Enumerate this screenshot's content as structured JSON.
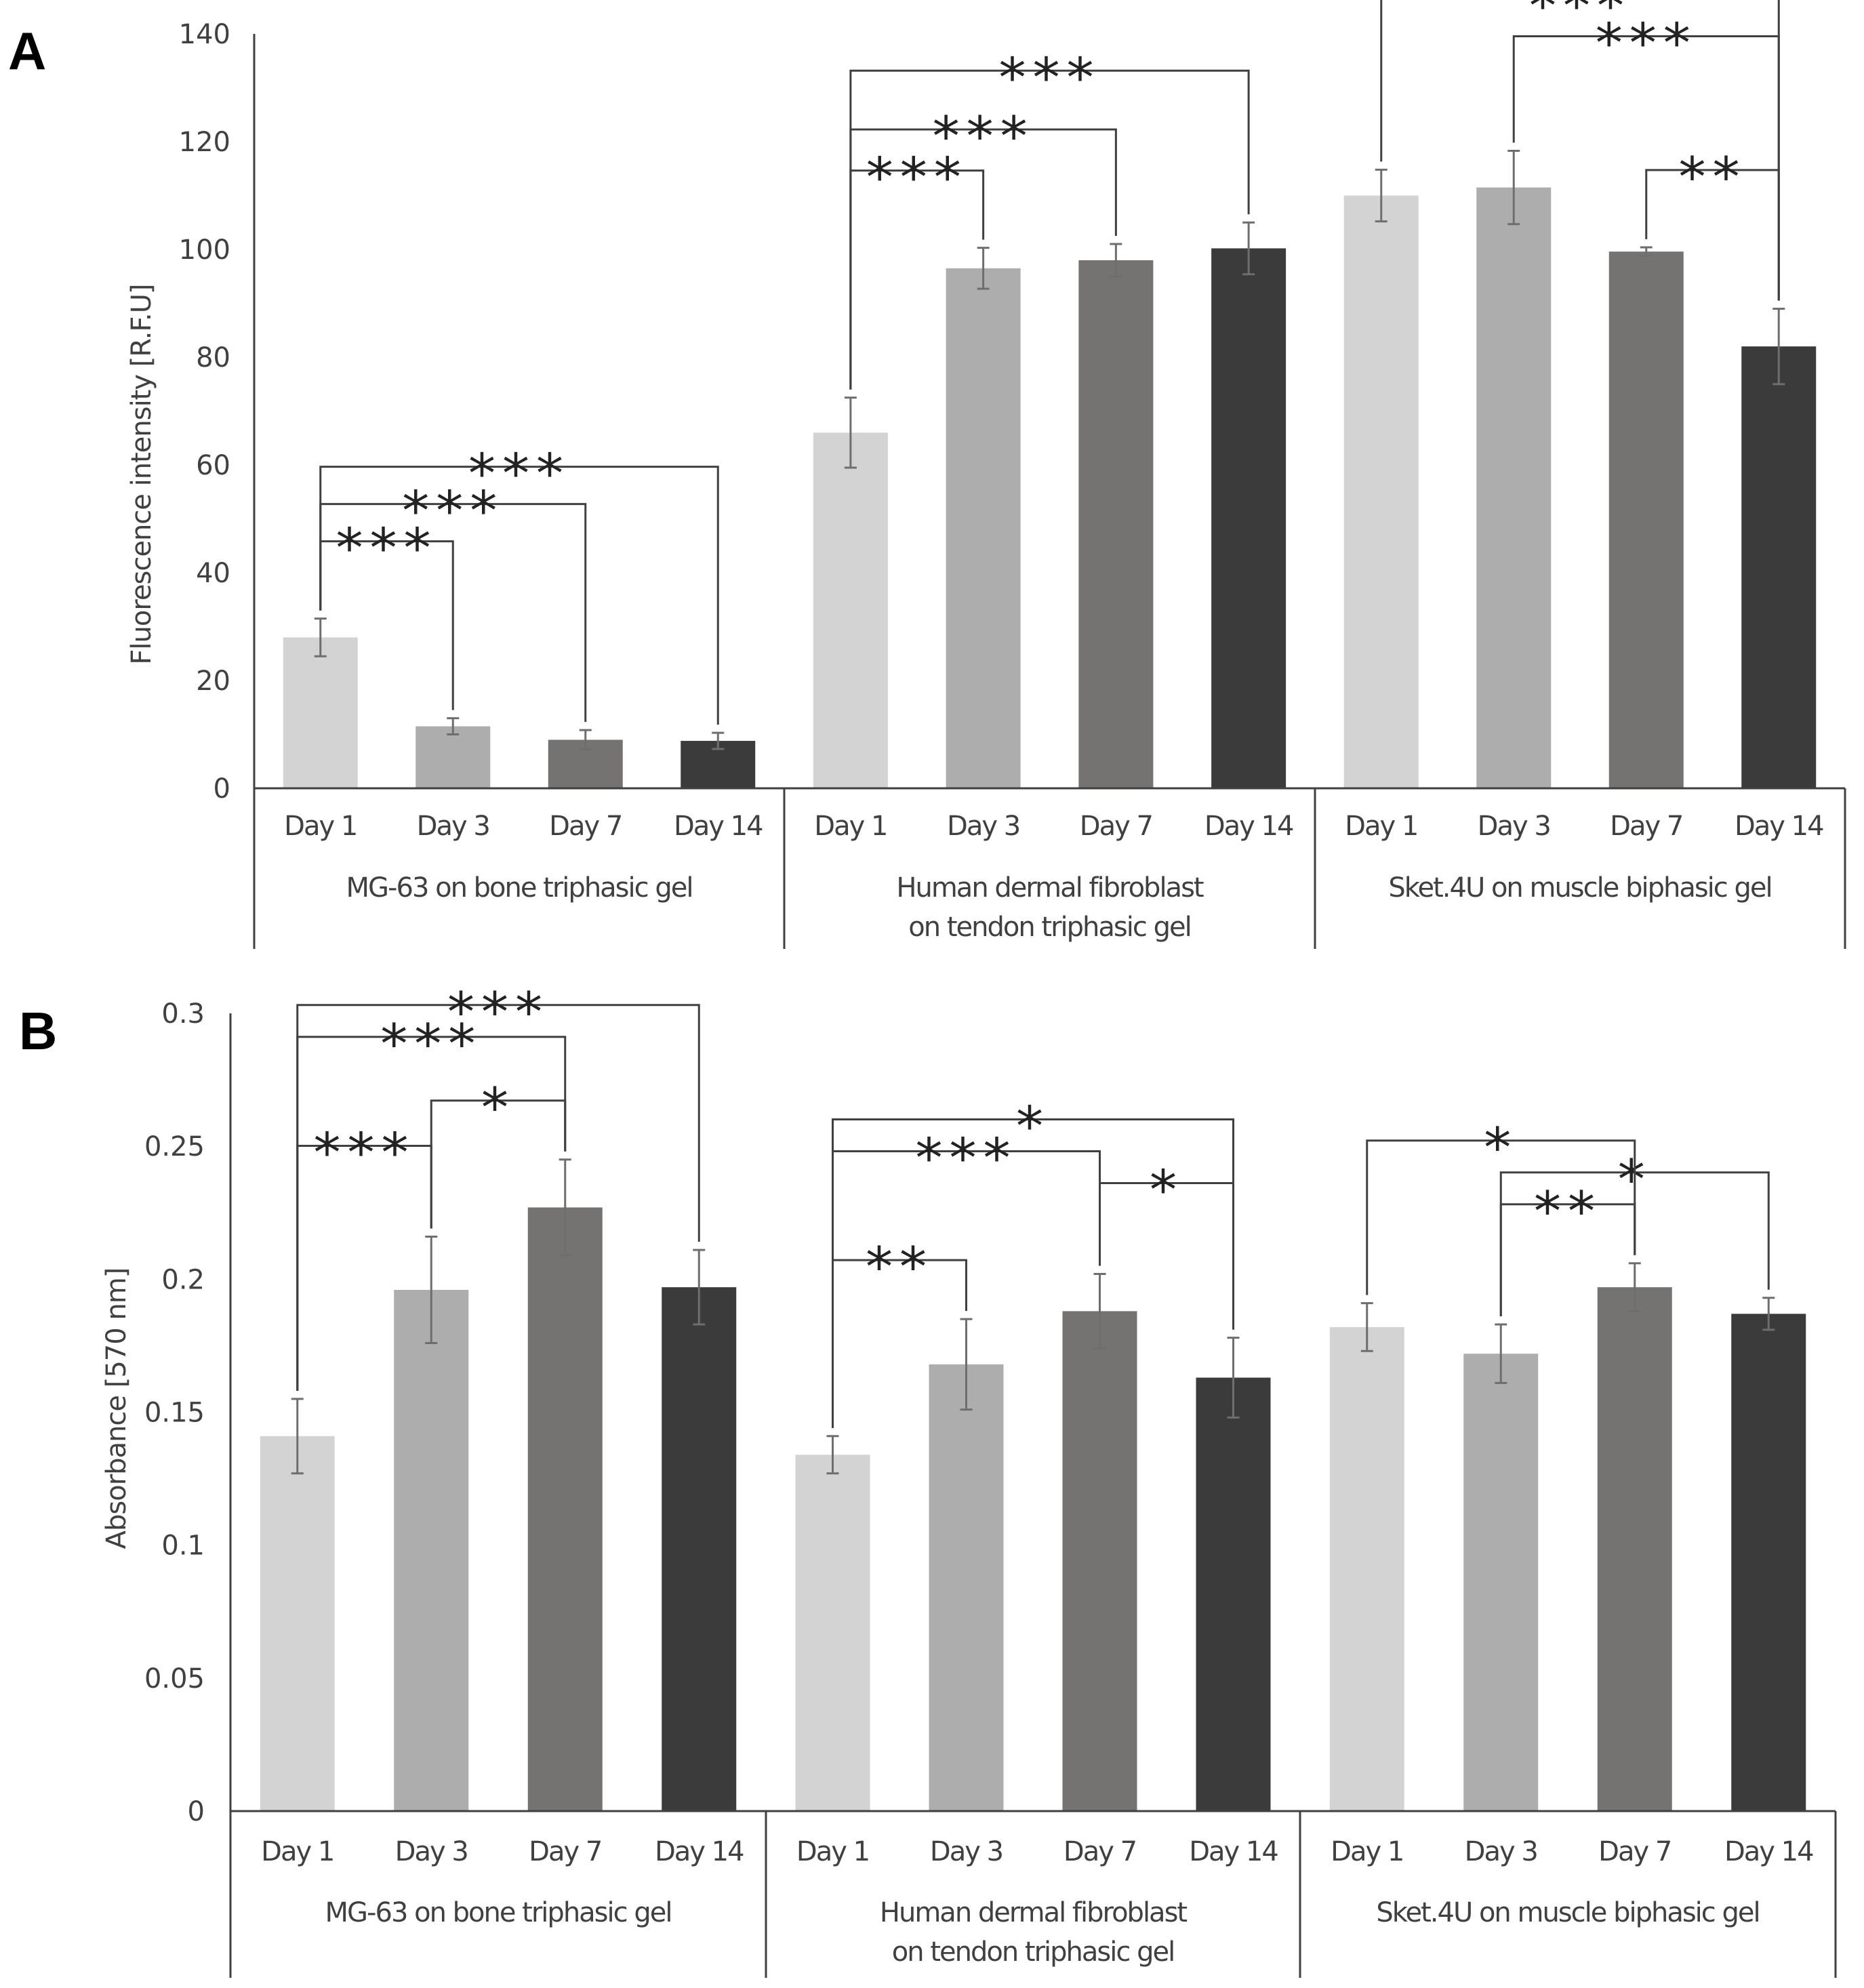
{
  "chart_data": [
    {
      "panel": "A",
      "type": "bar",
      "title": "",
      "ylabel": "Fluorescence intensity [R.F.U]",
      "ylim": [
        0,
        140
      ],
      "yticks": [
        0,
        20,
        40,
        60,
        80,
        100,
        120,
        140
      ],
      "categories": [
        "Day 1",
        "Day 3",
        "Day 7",
        "Day 14"
      ],
      "colors": [
        "#d3d3d3",
        "#adadad",
        "#757272",
        "#3b3b3b"
      ],
      "groups": [
        {
          "label_lines": [
            "MG-63 on bone triphasic gel"
          ],
          "values": [
            28,
            11.5,
            9,
            8.8
          ],
          "errors": [
            3.5,
            1.5,
            1.8,
            1.5
          ]
        },
        {
          "label_lines": [
            "Human dermal fibroblast",
            "on tendon triphasic gel"
          ],
          "values": [
            66,
            96.5,
            98,
            100.2
          ],
          "errors": [
            6.5,
            3.8,
            3,
            4.8
          ]
        },
        {
          "label_lines": [
            "Sket.4U on muscle biphasic gel"
          ],
          "values": [
            110,
            111.5,
            99.6,
            82
          ],
          "errors": [
            4.8,
            6.8,
            0.8,
            7
          ]
        }
      ],
      "significance": [
        {
          "group": 0,
          "from": 0,
          "to": 1,
          "level": 1,
          "label": "***"
        },
        {
          "group": 0,
          "from": 0,
          "to": 2,
          "level": 2,
          "label": "***"
        },
        {
          "group": 0,
          "from": 0,
          "to": 3,
          "level": 3,
          "label": "***"
        },
        {
          "group": 1,
          "from": 0,
          "to": 1,
          "level": 1,
          "label": "***"
        },
        {
          "group": 1,
          "from": 0,
          "to": 2,
          "level": 2,
          "label": "***"
        },
        {
          "group": 1,
          "from": 0,
          "to": 3,
          "level": 3,
          "label": "***"
        },
        {
          "group": 2,
          "from": 2,
          "to": 3,
          "level": 1,
          "label": "**"
        },
        {
          "group": 2,
          "from": 1,
          "to": 3,
          "level": 2,
          "label": "***"
        },
        {
          "group": 2,
          "from": 0,
          "to": 3,
          "level": 3,
          "label": "***"
        }
      ]
    },
    {
      "panel": "B",
      "type": "bar",
      "title": "",
      "ylabel": "Absorbance [570 nm]",
      "ylim": [
        0,
        0.3
      ],
      "yticks": [
        0,
        0.05,
        0.1,
        0.15,
        0.2,
        0.25,
        0.3
      ],
      "categories": [
        "Day 1",
        "Day 3",
        "Day 7",
        "Day 14"
      ],
      "colors": [
        "#d3d3d3",
        "#adadad",
        "#757272",
        "#3b3b3b"
      ],
      "groups": [
        {
          "label_lines": [
            "MG-63 on bone triphasic gel"
          ],
          "values": [
            0.141,
            0.196,
            0.227,
            0.197
          ],
          "errors": [
            0.014,
            0.02,
            0.018,
            0.014
          ]
        },
        {
          "label_lines": [
            "Human dermal fibroblast",
            "on tendon triphasic gel"
          ],
          "values": [
            0.134,
            0.168,
            0.188,
            0.163
          ],
          "errors": [
            0.007,
            0.017,
            0.014,
            0.015
          ]
        },
        {
          "label_lines": [
            "Sket.4U on muscle biphasic gel"
          ],
          "values": [
            0.182,
            0.172,
            0.197,
            0.187
          ],
          "errors": [
            0.009,
            0.011,
            0.009,
            0.006
          ]
        }
      ],
      "significance": [
        {
          "group": 0,
          "from": 0,
          "to": 1,
          "level": 1,
          "label": "***"
        },
        {
          "group": 0,
          "from": 1,
          "to": 2,
          "level": 0,
          "label": "*"
        },
        {
          "group": 0,
          "from": 0,
          "to": 2,
          "level": 2,
          "label": "***"
        },
        {
          "group": 0,
          "from": 0,
          "to": 3,
          "level": 3,
          "label": "***"
        },
        {
          "group": 1,
          "from": 0,
          "to": 1,
          "level": 0,
          "label": "**"
        },
        {
          "group": 1,
          "from": 2,
          "to": 3,
          "level": 1,
          "label": "*"
        },
        {
          "group": 1,
          "from": 0,
          "to": 2,
          "level": 2,
          "label": "***"
        },
        {
          "group": 1,
          "from": 0,
          "to": 3,
          "level": 3,
          "label": "*"
        },
        {
          "group": 2,
          "from": 1,
          "to": 2,
          "level": 0,
          "label": "**"
        },
        {
          "group": 2,
          "from": 1,
          "to": 3,
          "level": 1,
          "label": "*"
        },
        {
          "group": 2,
          "from": 0,
          "to": 2,
          "level": 2,
          "label": "*"
        }
      ]
    }
  ]
}
